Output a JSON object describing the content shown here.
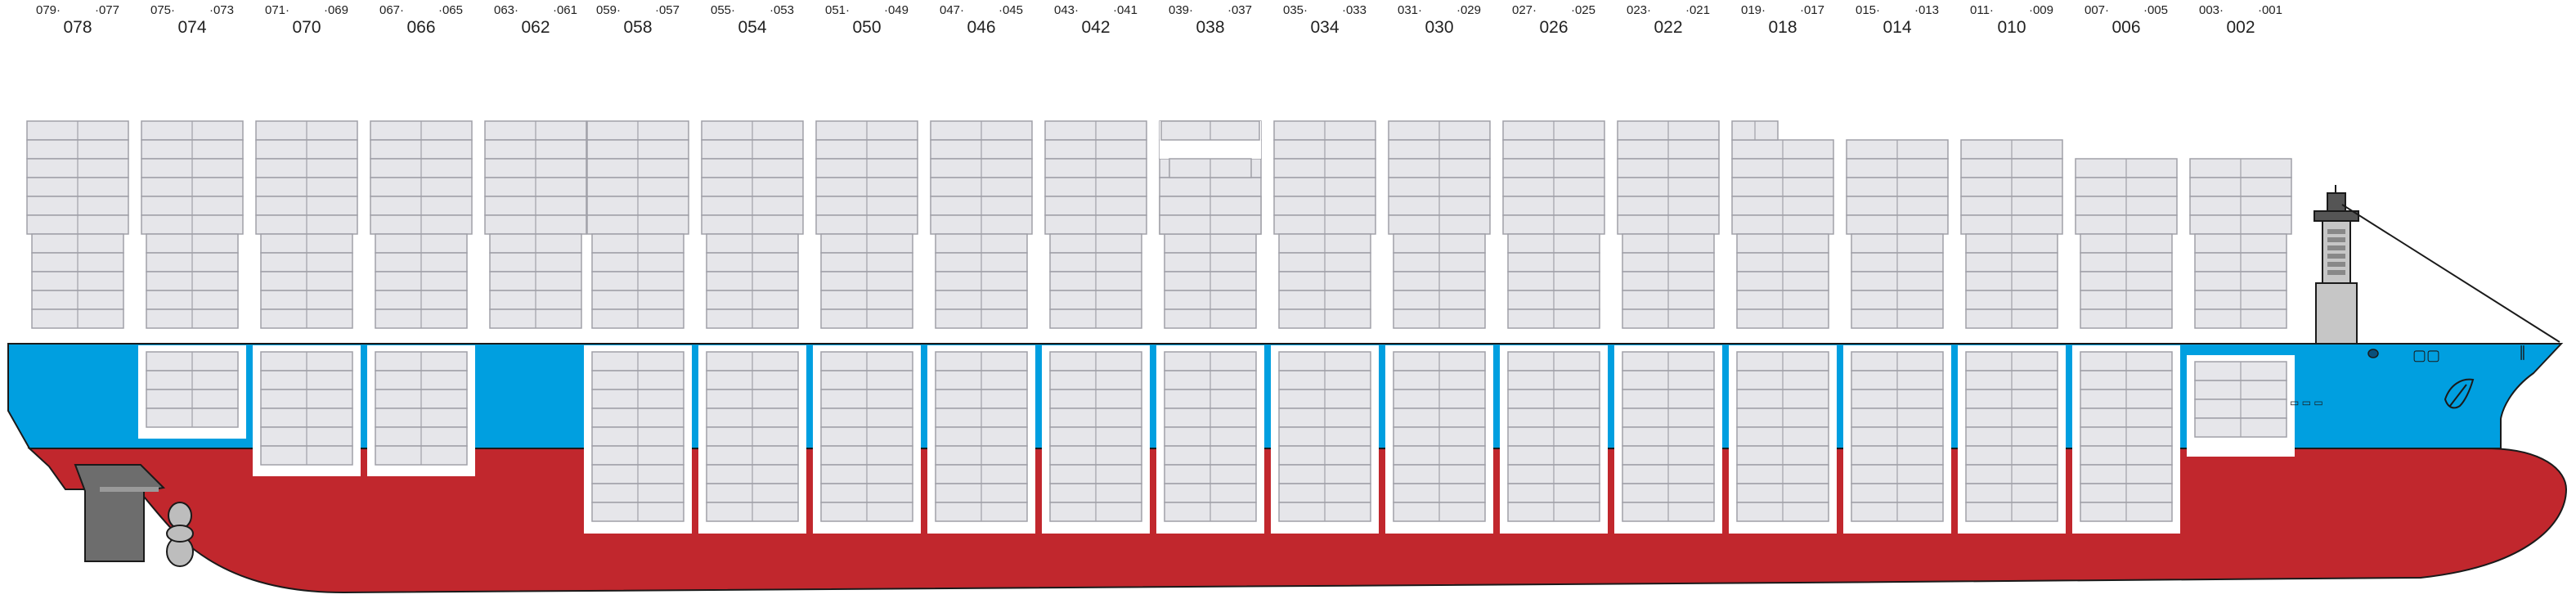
{
  "title": "",
  "colors": {
    "hull_upper": "#009fe0",
    "hull_lower": "#c1272d",
    "container_fill": "#e6e6ea",
    "container_stroke": "#a0a0a8",
    "hatch_fill": "#ffffff",
    "house": "#c6c6c6",
    "rudder": "#6d6d6d",
    "outline": "#1a1a1a"
  },
  "bays": [
    {
      "left": "079",
      "right": "077",
      "label": "078"
    },
    {
      "left": "075",
      "right": "073",
      "label": "074"
    },
    {
      "left": "071",
      "right": "069",
      "label": "070"
    },
    {
      "left": "067",
      "right": "065",
      "label": "066"
    },
    {
      "left": "063",
      "right": "061",
      "label": "062"
    },
    {
      "left": "059",
      "right": "057",
      "label": "058"
    },
    {
      "left": "055",
      "right": "053",
      "label": "054"
    },
    {
      "left": "051",
      "right": "049",
      "label": "050"
    },
    {
      "left": "047",
      "right": "045",
      "label": "046"
    },
    {
      "left": "043",
      "right": "041",
      "label": "042"
    },
    {
      "left": "039",
      "right": "037",
      "label": "038"
    },
    {
      "left": "035",
      "right": "033",
      "label": "034"
    },
    {
      "left": "031",
      "right": "029",
      "label": "030"
    },
    {
      "left": "027",
      "right": "025",
      "label": "026"
    },
    {
      "left": "023",
      "right": "021",
      "label": "022"
    },
    {
      "left": "019",
      "right": "017",
      "label": "018"
    },
    {
      "left": "015",
      "right": "013",
      "label": "014"
    },
    {
      "left": "011",
      "right": "009",
      "label": "010"
    },
    {
      "left": "007",
      "right": "005",
      "label": "006"
    },
    {
      "left": "003",
      "right": "001",
      "label": "002"
    }
  ]
}
